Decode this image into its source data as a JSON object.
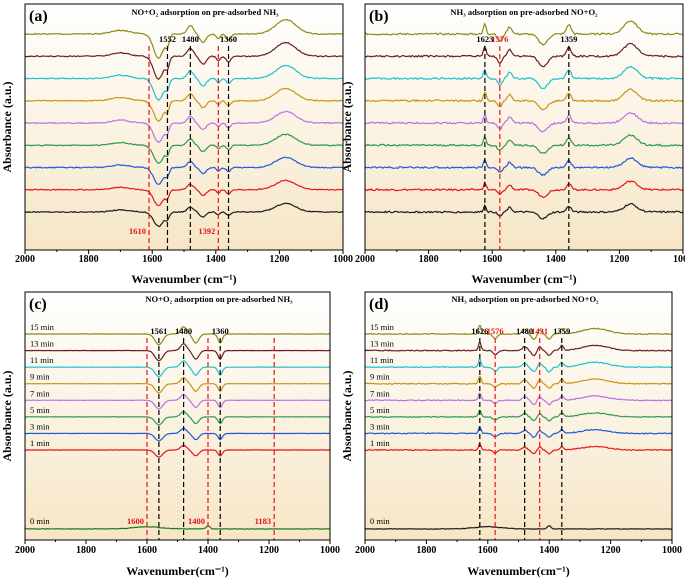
{
  "figure": {
    "colors": {
      "bg_top": "#ffffff",
      "bg_bottom": "#f6e6c6",
      "axis": "#000000",
      "dash_black": "#000000",
      "dash_red": "#e8141b",
      "curves": [
        "#1b1b1b",
        "#e8141b",
        "#1f5bd6",
        "#2e9a4c",
        "#b872e8",
        "#c99512",
        "#1fc2cd",
        "#6b1f23",
        "#8f8a16"
      ],
      "curves_cd": [
        "#1b1b1b",
        "#e8141b",
        "#1f5bd6",
        "#2e9a4c",
        "#b872e8",
        "#c99512",
        "#1fc2cd",
        "#6b1f23",
        "#8f8a16"
      ],
      "zero_min_c": "#1b7a1b"
    }
  },
  "chart_data": [
    {
      "panel": "a",
      "type": "line",
      "panel_label": "(a)",
      "title": "NO+O₂ adsorption on pre-adsorbed NH₃",
      "xlabel": "Wavenumber (cm⁻¹)",
      "ylabel": "Absorbance (a.u.)",
      "xlim": [
        2000,
        1000
      ],
      "x_ticks": [
        "2000",
        "1800",
        "1600",
        "1400",
        "1200",
        "1000"
      ],
      "n_curves": 9,
      "series_labels": [],
      "dashed_lines": [
        {
          "x": 1552,
          "label": "1552",
          "color": "black",
          "label_pos": "top"
        },
        {
          "x": 1480,
          "label": "1480",
          "color": "black",
          "label_pos": "top"
        },
        {
          "x": 1360,
          "label": "1360",
          "color": "black",
          "label_pos": "top"
        },
        {
          "x": 1610,
          "label": "1610",
          "color": "red",
          "label_pos": "bottom"
        },
        {
          "x": 1392,
          "label": "1392",
          "color": "red",
          "label_pos": "bottom"
        }
      ],
      "bands": [
        {
          "center": 1580,
          "amp": -1.0,
          "width": 22
        },
        {
          "center": 1552,
          "amp": -0.4,
          "width": 8
        },
        {
          "center": 1480,
          "amp": 0.35,
          "width": 14
        },
        {
          "center": 1440,
          "amp": -0.35,
          "width": 14
        },
        {
          "center": 1392,
          "amp": -0.2,
          "width": 8
        },
        {
          "center": 1360,
          "amp": -0.25,
          "width": 10
        },
        {
          "center": 1180,
          "amp": 0.6,
          "width": 45
        },
        {
          "center": 1700,
          "amp": 0.15,
          "width": 40
        }
      ],
      "noise": 0.04
    },
    {
      "panel": "b",
      "type": "line",
      "panel_label": "(b)",
      "title": "NH₃ adsorption on pre-adsorbed NO+O₂",
      "xlabel": "Wavenumber (cm⁻¹)",
      "ylabel": "Absorbance (a.u.)",
      "xlim": [
        2000,
        1000
      ],
      "x_ticks": [
        "2000",
        "1800",
        "1600",
        "1400",
        "1200",
        "1000"
      ],
      "n_curves": 9,
      "series_labels": [],
      "dashed_lines": [
        {
          "x": 1623,
          "label": "1623",
          "color": "black",
          "label_pos": "top"
        },
        {
          "x": 1576,
          "label": "1576",
          "color": "red",
          "label_pos": "top"
        },
        {
          "x": 1359,
          "label": "1359",
          "color": "black",
          "label_pos": "top"
        }
      ],
      "bands": [
        {
          "center": 1623,
          "amp": 0.45,
          "width": 6
        },
        {
          "center": 1576,
          "amp": -0.3,
          "width": 10
        },
        {
          "center": 1545,
          "amp": 0.3,
          "width": 10
        },
        {
          "center": 1440,
          "amp": -0.45,
          "width": 20
        },
        {
          "center": 1359,
          "amp": 0.4,
          "width": 10
        },
        {
          "center": 1165,
          "amp": 0.55,
          "width": 30
        }
      ],
      "noise": 0.07
    },
    {
      "panel": "c",
      "type": "line",
      "panel_label": "(c)",
      "title": "NO+O₂ adsorption on pre-adsorbed NH₃",
      "xlabel": "Wavenumber(cm⁻¹)",
      "ylabel": "Absorbance (a.u.)",
      "xlim": [
        2000,
        1000
      ],
      "x_ticks": [
        "2000",
        "1800",
        "1600",
        "1400",
        "1200",
        "1000"
      ],
      "n_curves": 9,
      "series_labels": [
        "0 min",
        "1 min",
        "3 min",
        "5 min",
        "7 min",
        "9 min",
        "11 min",
        "13 min",
        "15 min"
      ],
      "dashed_lines": [
        {
          "x": 1561,
          "label": "1561",
          "color": "black",
          "label_pos": "top"
        },
        {
          "x": 1480,
          "label": "1480",
          "color": "black",
          "label_pos": "top"
        },
        {
          "x": 1360,
          "label": "1360",
          "color": "black",
          "label_pos": "top"
        },
        {
          "x": 1600,
          "label": "1600",
          "color": "red",
          "label_pos": "bottom"
        },
        {
          "x": 1400,
          "label": "1400",
          "color": "red",
          "label_pos": "bottom"
        },
        {
          "x": 1183,
          "label": "1183",
          "color": "red",
          "label_pos": "bottom"
        }
      ],
      "bands": [
        {
          "center": 1561,
          "amp": -0.6,
          "width": 18
        },
        {
          "center": 1480,
          "amp": 0.4,
          "width": 14
        },
        {
          "center": 1440,
          "amp": -0.5,
          "width": 14
        },
        {
          "center": 1360,
          "amp": -0.5,
          "width": 10
        }
      ],
      "noise": 0.015
    },
    {
      "panel": "d",
      "type": "line",
      "panel_label": "(d)",
      "title": "NH₃ adsorption on pre-adsorbed NO+O₂",
      "xlabel": "Wavenumber(cm⁻¹)",
      "ylabel": "Absorbance (a.u.)",
      "xlim": [
        2000,
        1000
      ],
      "x_ticks": [
        "2000",
        "1800",
        "1600",
        "1400",
        "1200",
        "1000"
      ],
      "n_curves": 9,
      "series_labels": [
        "0 min",
        "1 min",
        "3 min",
        "5 min",
        "7 min",
        "9 min",
        "11 min",
        "13 min",
        "15 min"
      ],
      "dashed_lines": [
        {
          "x": 1626,
          "label": "1626",
          "color": "black",
          "label_pos": "top"
        },
        {
          "x": 1576,
          "label": "1576",
          "color": "red",
          "label_pos": "top"
        },
        {
          "x": 1480,
          "label": "1480",
          "color": "black",
          "label_pos": "top"
        },
        {
          "x": 1431,
          "label": "1431",
          "color": "red",
          "label_pos": "top"
        },
        {
          "x": 1359,
          "label": "1359",
          "color": "black",
          "label_pos": "top"
        }
      ],
      "bands": [
        {
          "center": 1626,
          "amp": 0.5,
          "width": 6
        },
        {
          "center": 1576,
          "amp": -0.25,
          "width": 10
        },
        {
          "center": 1480,
          "amp": 0.25,
          "width": 10
        },
        {
          "center": 1450,
          "amp": -0.3,
          "width": 10
        },
        {
          "center": 1431,
          "amp": 0.25,
          "width": 8
        },
        {
          "center": 1400,
          "amp": -0.3,
          "width": 10
        },
        {
          "center": 1359,
          "amp": 0.3,
          "width": 8
        },
        {
          "center": 1250,
          "amp": 0.3,
          "width": 60
        }
      ],
      "noise": 0.05
    }
  ]
}
